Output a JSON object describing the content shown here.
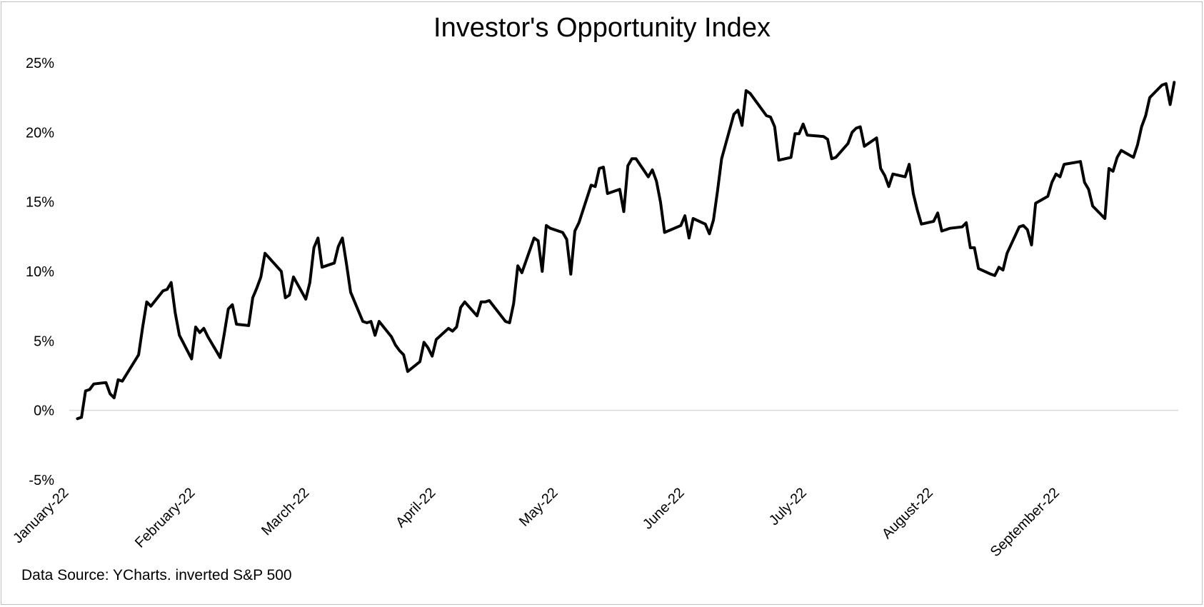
{
  "chart_data": {
    "type": "line",
    "title": "Investor's Opportunity Index",
    "source": "Data Source: YCharts. inverted S&P 500",
    "xlabel": "",
    "ylabel": "",
    "ylim": [
      -5,
      25
    ],
    "y_ticks": [
      {
        "value": 25,
        "label": "25%"
      },
      {
        "value": 20,
        "label": "20%"
      },
      {
        "value": 15,
        "label": "15%"
      },
      {
        "value": 10,
        "label": "10%"
      },
      {
        "value": 5,
        "label": "5%"
      },
      {
        "value": 0,
        "label": "0%"
      },
      {
        "value": -5,
        "label": "-5%"
      }
    ],
    "x_range": [
      "2022-01-01",
      "2022-09-30"
    ],
    "x_ticks": [
      {
        "date": "2022-01-01",
        "label": "January-22"
      },
      {
        "date": "2022-02-01",
        "label": "February-22"
      },
      {
        "date": "2022-03-01",
        "label": "March-22"
      },
      {
        "date": "2022-04-01",
        "label": "April-22"
      },
      {
        "date": "2022-05-01",
        "label": "May-22"
      },
      {
        "date": "2022-06-01",
        "label": "June-22"
      },
      {
        "date": "2022-07-01",
        "label": "July-22"
      },
      {
        "date": "2022-08-01",
        "label": "August-22"
      },
      {
        "date": "2022-09-01",
        "label": "September-22"
      }
    ],
    "grid": false,
    "legend": "none",
    "series": [
      {
        "color": "#000000",
        "points": [
          [
            "2022-01-03",
            -0.6
          ],
          [
            "2022-01-04",
            -0.5
          ],
          [
            "2022-01-05",
            1.4
          ],
          [
            "2022-01-06",
            1.5
          ],
          [
            "2022-01-07",
            1.9
          ],
          [
            "2022-01-10",
            2.0
          ],
          [
            "2022-01-11",
            1.2
          ],
          [
            "2022-01-12",
            0.9
          ],
          [
            "2022-01-13",
            2.2
          ],
          [
            "2022-01-14",
            2.1
          ],
          [
            "2022-01-18",
            4.0
          ],
          [
            "2022-01-19",
            6.0
          ],
          [
            "2022-01-20",
            7.8
          ],
          [
            "2022-01-21",
            7.5
          ],
          [
            "2022-01-24",
            8.6
          ],
          [
            "2022-01-25",
            8.7
          ],
          [
            "2022-01-26",
            9.2
          ],
          [
            "2022-01-27",
            7.0
          ],
          [
            "2022-01-28",
            5.4
          ],
          [
            "2022-01-31",
            3.7
          ],
          [
            "2022-02-01",
            6.0
          ],
          [
            "2022-02-02",
            5.6
          ],
          [
            "2022-02-03",
            5.9
          ],
          [
            "2022-02-04",
            5.3
          ],
          [
            "2022-02-07",
            3.8
          ],
          [
            "2022-02-08",
            5.5
          ],
          [
            "2022-02-09",
            7.3
          ],
          [
            "2022-02-10",
            7.6
          ],
          [
            "2022-02-11",
            6.2
          ],
          [
            "2022-02-14",
            6.1
          ],
          [
            "2022-02-15",
            8.1
          ],
          [
            "2022-02-16",
            8.8
          ],
          [
            "2022-02-17",
            9.6
          ],
          [
            "2022-02-18",
            11.3
          ],
          [
            "2022-02-22",
            10.0
          ],
          [
            "2022-02-23",
            8.1
          ],
          [
            "2022-02-24",
            8.3
          ],
          [
            "2022-02-25",
            9.6
          ],
          [
            "2022-02-28",
            8.0
          ],
          [
            "2022-03-01",
            9.2
          ],
          [
            "2022-03-02",
            11.7
          ],
          [
            "2022-03-03",
            12.4
          ],
          [
            "2022-03-04",
            10.3
          ],
          [
            "2022-03-07",
            10.6
          ],
          [
            "2022-03-08",
            11.8
          ],
          [
            "2022-03-09",
            12.4
          ],
          [
            "2022-03-10",
            10.5
          ],
          [
            "2022-03-11",
            8.5
          ],
          [
            "2022-03-14",
            6.4
          ],
          [
            "2022-03-15",
            6.3
          ],
          [
            "2022-03-16",
            6.4
          ],
          [
            "2022-03-17",
            5.4
          ],
          [
            "2022-03-18",
            6.4
          ],
          [
            "2022-03-21",
            5.3
          ],
          [
            "2022-03-22",
            4.7
          ],
          [
            "2022-03-23",
            4.3
          ],
          [
            "2022-03-24",
            4.0
          ],
          [
            "2022-03-25",
            2.8
          ],
          [
            "2022-03-28",
            3.5
          ],
          [
            "2022-03-29",
            4.9
          ],
          [
            "2022-03-30",
            4.5
          ],
          [
            "2022-03-31",
            3.9
          ],
          [
            "2022-04-01",
            5.1
          ],
          [
            "2022-04-04",
            5.9
          ],
          [
            "2022-04-05",
            5.7
          ],
          [
            "2022-04-06",
            6.0
          ],
          [
            "2022-04-07",
            7.4
          ],
          [
            "2022-04-08",
            7.8
          ],
          [
            "2022-04-11",
            6.8
          ],
          [
            "2022-04-12",
            7.8
          ],
          [
            "2022-04-13",
            7.8
          ],
          [
            "2022-04-14",
            7.9
          ],
          [
            "2022-04-18",
            6.4
          ],
          [
            "2022-04-19",
            6.3
          ],
          [
            "2022-04-20",
            7.7
          ],
          [
            "2022-04-21",
            10.4
          ],
          [
            "2022-04-22",
            9.9
          ],
          [
            "2022-04-25",
            12.4
          ],
          [
            "2022-04-26",
            12.2
          ],
          [
            "2022-04-27",
            10.0
          ],
          [
            "2022-04-28",
            13.3
          ],
          [
            "2022-04-29",
            13.1
          ],
          [
            "2022-05-02",
            12.8
          ],
          [
            "2022-05-03",
            12.3
          ],
          [
            "2022-05-04",
            9.8
          ],
          [
            "2022-05-05",
            12.9
          ],
          [
            "2022-05-06",
            13.5
          ],
          [
            "2022-05-09",
            16.2
          ],
          [
            "2022-05-10",
            16.1
          ],
          [
            "2022-05-11",
            17.4
          ],
          [
            "2022-05-12",
            17.5
          ],
          [
            "2022-05-13",
            15.6
          ],
          [
            "2022-05-16",
            15.9
          ],
          [
            "2022-05-17",
            14.3
          ],
          [
            "2022-05-18",
            17.6
          ],
          [
            "2022-05-19",
            18.1
          ],
          [
            "2022-05-20",
            18.1
          ],
          [
            "2022-05-23",
            16.8
          ],
          [
            "2022-05-24",
            17.3
          ],
          [
            "2022-05-25",
            16.5
          ],
          [
            "2022-05-26",
            15.0
          ],
          [
            "2022-05-27",
            12.8
          ],
          [
            "2022-05-31",
            13.3
          ],
          [
            "2022-06-01",
            14.0
          ],
          [
            "2022-06-02",
            12.4
          ],
          [
            "2022-06-03",
            13.8
          ],
          [
            "2022-06-06",
            13.4
          ],
          [
            "2022-06-07",
            12.7
          ],
          [
            "2022-06-08",
            13.7
          ],
          [
            "2022-06-09",
            15.8
          ],
          [
            "2022-06-10",
            18.1
          ],
          [
            "2022-06-13",
            21.3
          ],
          [
            "2022-06-14",
            21.6
          ],
          [
            "2022-06-15",
            20.5
          ],
          [
            "2022-06-16",
            23.0
          ],
          [
            "2022-06-17",
            22.8
          ],
          [
            "2022-06-21",
            21.2
          ],
          [
            "2022-06-22",
            21.1
          ],
          [
            "2022-06-23",
            20.4
          ],
          [
            "2022-06-24",
            18.0
          ],
          [
            "2022-06-27",
            18.2
          ],
          [
            "2022-06-28",
            19.9
          ],
          [
            "2022-06-29",
            19.9
          ],
          [
            "2022-06-30",
            20.6
          ],
          [
            "2022-07-01",
            19.8
          ],
          [
            "2022-07-05",
            19.7
          ],
          [
            "2022-07-06",
            19.5
          ],
          [
            "2022-07-07",
            18.1
          ],
          [
            "2022-07-08",
            18.2
          ],
          [
            "2022-07-11",
            19.2
          ],
          [
            "2022-07-12",
            20.0
          ],
          [
            "2022-07-13",
            20.3
          ],
          [
            "2022-07-14",
            20.4
          ],
          [
            "2022-07-15",
            19.0
          ],
          [
            "2022-07-18",
            19.6
          ],
          [
            "2022-07-19",
            17.4
          ],
          [
            "2022-07-20",
            16.9
          ],
          [
            "2022-07-21",
            16.1
          ],
          [
            "2022-07-22",
            17.0
          ],
          [
            "2022-07-25",
            16.8
          ],
          [
            "2022-07-26",
            17.7
          ],
          [
            "2022-07-27",
            15.6
          ],
          [
            "2022-07-28",
            14.4
          ],
          [
            "2022-07-29",
            13.4
          ],
          [
            "2022-08-01",
            13.6
          ],
          [
            "2022-08-02",
            14.2
          ],
          [
            "2022-08-03",
            12.9
          ],
          [
            "2022-08-04",
            13.0
          ],
          [
            "2022-08-05",
            13.1
          ],
          [
            "2022-08-08",
            13.2
          ],
          [
            "2022-08-09",
            13.5
          ],
          [
            "2022-08-10",
            11.7
          ],
          [
            "2022-08-11",
            11.7
          ],
          [
            "2022-08-12",
            10.2
          ],
          [
            "2022-08-15",
            9.8
          ],
          [
            "2022-08-16",
            9.7
          ],
          [
            "2022-08-17",
            10.3
          ],
          [
            "2022-08-18",
            10.1
          ],
          [
            "2022-08-19",
            11.3
          ],
          [
            "2022-08-22",
            13.2
          ],
          [
            "2022-08-23",
            13.3
          ],
          [
            "2022-08-24",
            13.0
          ],
          [
            "2022-08-25",
            11.9
          ],
          [
            "2022-08-26",
            14.9
          ],
          [
            "2022-08-29",
            15.4
          ],
          [
            "2022-08-30",
            16.4
          ],
          [
            "2022-08-31",
            17.0
          ],
          [
            "2022-09-01",
            16.8
          ],
          [
            "2022-09-02",
            17.7
          ],
          [
            "2022-09-06",
            17.9
          ],
          [
            "2022-09-07",
            16.4
          ],
          [
            "2022-09-08",
            15.9
          ],
          [
            "2022-09-09",
            14.7
          ],
          [
            "2022-09-12",
            13.8
          ],
          [
            "2022-09-13",
            17.4
          ],
          [
            "2022-09-14",
            17.2
          ],
          [
            "2022-09-15",
            18.2
          ],
          [
            "2022-09-16",
            18.7
          ],
          [
            "2022-09-19",
            18.2
          ],
          [
            "2022-09-20",
            19.1
          ],
          [
            "2022-09-21",
            20.4
          ],
          [
            "2022-09-22",
            21.2
          ],
          [
            "2022-09-23",
            22.5
          ],
          [
            "2022-09-26",
            23.4
          ],
          [
            "2022-09-27",
            23.5
          ],
          [
            "2022-09-28",
            22.0
          ],
          [
            "2022-09-29",
            23.6
          ]
        ]
      }
    ]
  }
}
